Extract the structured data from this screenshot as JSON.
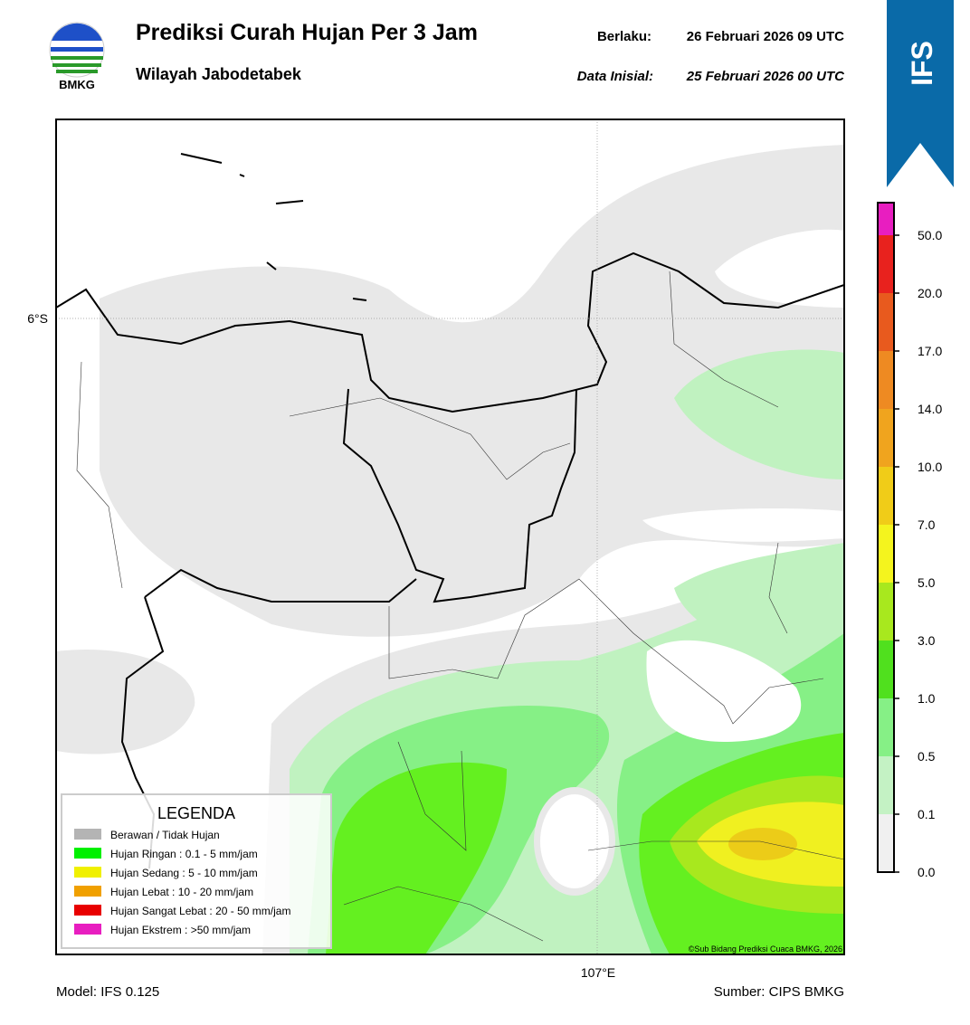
{
  "header": {
    "logo_text": "BMKG",
    "title": "Prediksi Curah Hujan Per 3 Jam",
    "subtitle": "Wilayah Jabodetabek",
    "valid_label": "Berlaku:",
    "valid_time": "26 Februari 2026 09 UTC",
    "init_label": "Data Inisial:",
    "init_time": "25 Februari 2026 00 UTC",
    "badge": "IFS"
  },
  "map": {
    "lat_label": "6°S",
    "lon_label": "107°E",
    "credit": "©Sub Bidang Prediksi Cuaca BMKG, 2026"
  },
  "legend": {
    "title": "LEGENDA",
    "items": [
      {
        "label": "Berawan / Tidak Hujan",
        "color": "#b4b4b4"
      },
      {
        "label": "Hujan Ringan : 0.1 - 5 mm/jam",
        "color": "#00f000"
      },
      {
        "label": "Hujan Sedang : 5 - 10 mm/jam",
        "color": "#f0f000"
      },
      {
        "label": "Hujan Lebat : 10 - 20 mm/jam",
        "color": "#f0a000"
      },
      {
        "label": "Hujan Sangat Lebat : 20 - 50 mm/jam",
        "color": "#e80000"
      },
      {
        "label": "Hujan Ekstrem : >50 mm/jam",
        "color": "#e81ec0"
      }
    ]
  },
  "colorbar": {
    "colors": [
      "#e81ec0",
      "#e8221e",
      "#e85a1e",
      "#ee8a22",
      "#f0a41e",
      "#f0cc18",
      "#f4f41e",
      "#a8e81e",
      "#50e01e",
      "#86f086",
      "#c4f2c4",
      "#f0f0f0"
    ],
    "ticks": [
      "50.0",
      "20.0",
      "17.0",
      "14.0",
      "10.0",
      "7.0",
      "5.0",
      "3.0",
      "1.0",
      "0.5",
      "0.1",
      "0.0"
    ]
  },
  "footer": {
    "model": "Model: IFS 0.125",
    "source": "Sumber: CIPS BMKG"
  }
}
